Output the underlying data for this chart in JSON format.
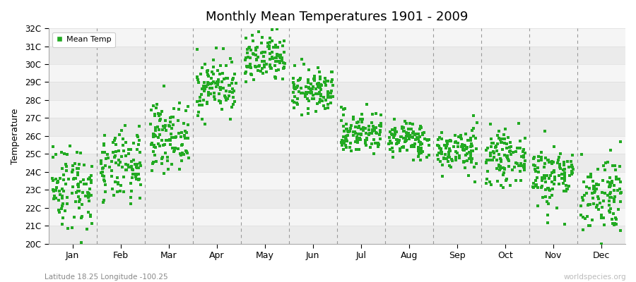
{
  "title": "Monthly Mean Temperatures 1901 - 2009",
  "ylabel": "Temperature",
  "ytick_labels": [
    "20C",
    "21C",
    "22C",
    "23C",
    "24C",
    "25C",
    "26C",
    "27C",
    "28C",
    "29C",
    "30C",
    "31C",
    "32C"
  ],
  "ytick_values": [
    20,
    21,
    22,
    23,
    24,
    25,
    26,
    27,
    28,
    29,
    30,
    31,
    32
  ],
  "ylim": [
    20,
    32
  ],
  "month_labels": [
    "Jan",
    "Feb",
    "Mar",
    "Apr",
    "May",
    "Jun",
    "Jul",
    "Aug",
    "Sep",
    "Oct",
    "Nov",
    "Dec"
  ],
  "dot_color": "#22aa22",
  "legend_label": "Mean Temp",
  "subtitle": "Latitude 18.25 Longitude -100.25",
  "watermark": "worldspecies.org",
  "background_color": "#ffffff",
  "plot_bg_color": "#ffffff",
  "monthly_means": [
    23.2,
    24.2,
    26.0,
    28.8,
    30.2,
    28.5,
    26.2,
    25.8,
    25.2,
    24.8,
    23.8,
    22.8
  ],
  "monthly_stds": [
    1.2,
    1.0,
    0.9,
    0.8,
    0.7,
    0.6,
    0.6,
    0.5,
    0.6,
    0.7,
    0.9,
    1.1
  ],
  "n_years": 109,
  "seed": 42,
  "band_colors": [
    "#ebebeb",
    "#f5f5f5"
  ],
  "dashed_line_color": "#999999",
  "grid_color": "#dddddd"
}
